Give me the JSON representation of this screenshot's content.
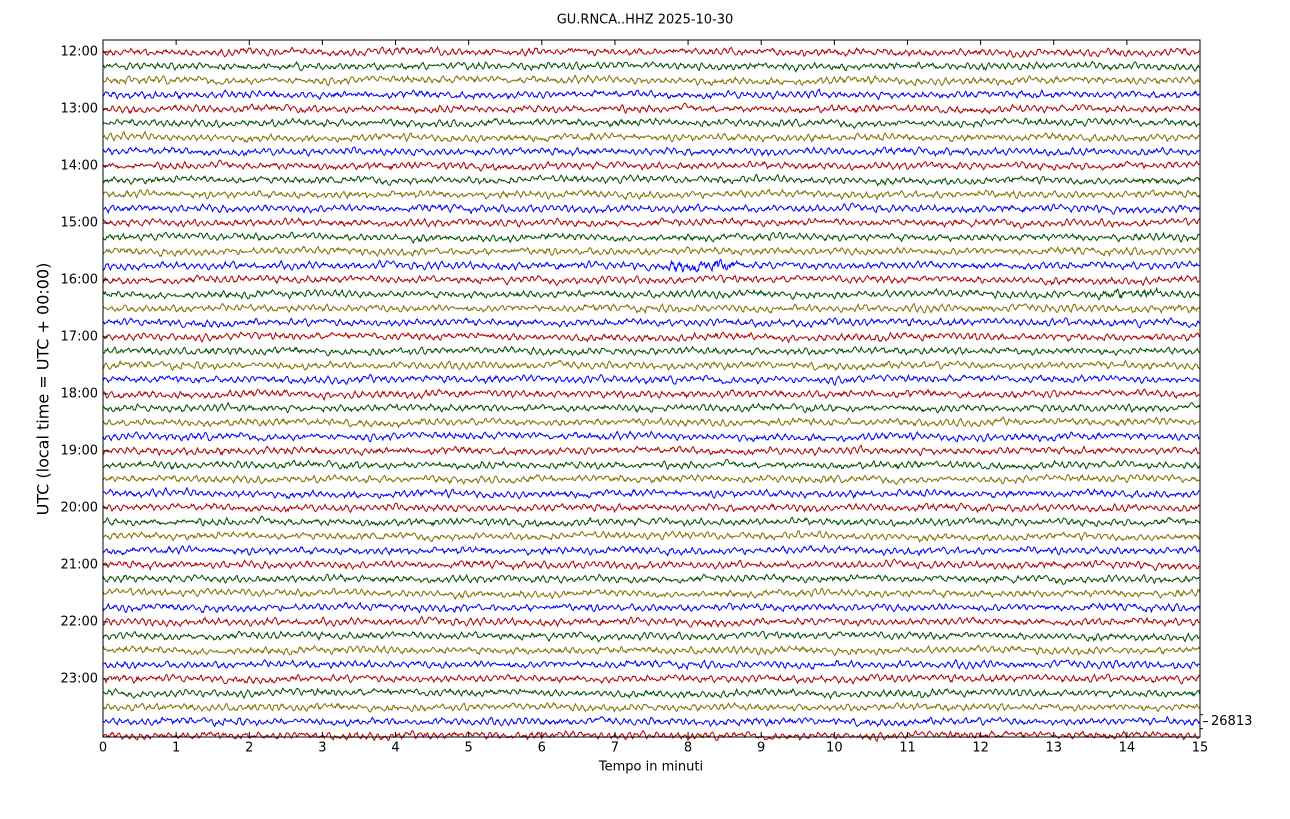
{
  "chart_data": {
    "type": "helicorder",
    "title": "GU.RNCA..HHZ 2025-10-30",
    "xlabel": "Tempo in minuti",
    "ylabel": "UTC (local time = UTC + 00:00)",
    "xlim": [
      0,
      15
    ],
    "xticks": [
      0,
      1,
      2,
      3,
      4,
      5,
      6,
      7,
      8,
      9,
      10,
      11,
      12,
      13,
      14,
      15
    ],
    "ylim": [
      11.79,
      24.02
    ],
    "yticks": [
      {
        "value": 12,
        "label": "12:00"
      },
      {
        "value": 13,
        "label": "13:00"
      },
      {
        "value": 14,
        "label": "14:00"
      },
      {
        "value": 15,
        "label": "15:00"
      },
      {
        "value": 16,
        "label": "16:00"
      },
      {
        "value": 17,
        "label": "17:00"
      },
      {
        "value": 18,
        "label": "18:00"
      },
      {
        "value": 19,
        "label": "19:00"
      },
      {
        "value": 20,
        "label": "20:00"
      },
      {
        "value": 21,
        "label": "21:00"
      },
      {
        "value": 22,
        "label": "22:00"
      },
      {
        "value": 23,
        "label": "23:00"
      }
    ],
    "trace_colors": [
      "#b30000",
      "#005000",
      "#807000",
      "#0000ff"
    ],
    "scale": 26813
  }
}
